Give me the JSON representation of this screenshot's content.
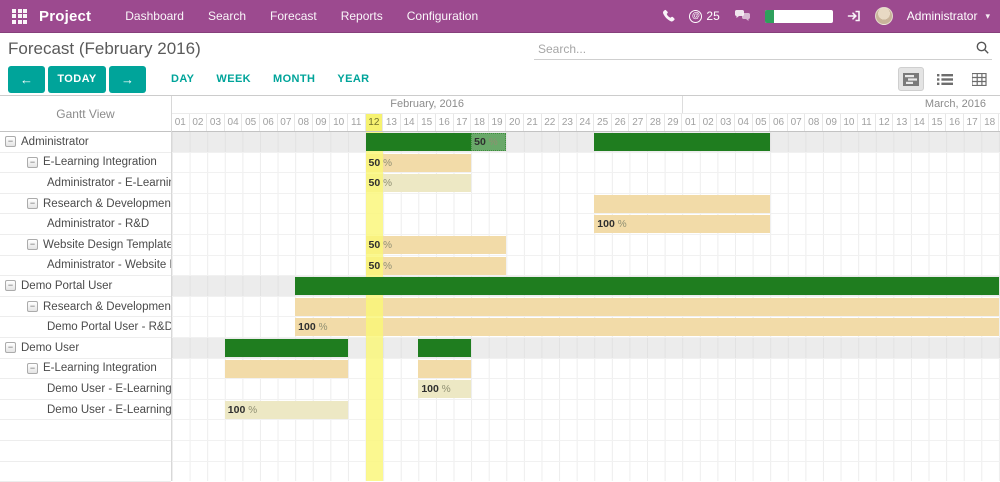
{
  "navbar": {
    "brand": "Project",
    "menus": [
      "Dashboard",
      "Search",
      "Forecast",
      "Reports",
      "Configuration"
    ],
    "message_count": "25",
    "user": "Administrator"
  },
  "header": {
    "title": "Forecast (February 2016)",
    "search_placeholder": "Search..."
  },
  "controls": {
    "today_label": "TODAY",
    "prev_label": "←",
    "next_label": "→",
    "ranges": [
      "DAY",
      "WEEK",
      "MONTH",
      "YEAR"
    ]
  },
  "colors": {
    "navbar": "#9c4a8f",
    "accent_teal": "#00a49a",
    "bar_green": "#1f7d1f",
    "bar_green_light": "#69a869",
    "bar_wheat": "#f2dba8",
    "bar_pale": "#ede8c4",
    "today_highlight": "#f6f270",
    "group_row": "#ececec"
  },
  "gantt": {
    "left_header": "Gantt View",
    "months": [
      {
        "label": "February, 2016",
        "days": 29
      },
      {
        "label": "March, 2016",
        "days": 31
      }
    ],
    "day_labels": [
      "01",
      "02",
      "03",
      "04",
      "05",
      "06",
      "07",
      "08",
      "09",
      "10",
      "11",
      "12",
      "13",
      "14",
      "15",
      "16",
      "17",
      "18",
      "19",
      "20",
      "21",
      "22",
      "23",
      "24",
      "25",
      "26",
      "27",
      "28",
      "29",
      "01",
      "02",
      "03",
      "04",
      "05",
      "06",
      "07",
      "08",
      "09",
      "10",
      "11",
      "12",
      "13",
      "14",
      "15",
      "16",
      "17",
      "18"
    ],
    "today_index": 11,
    "rows": [
      {
        "label": "Administrator",
        "level": 0,
        "group": true,
        "collapsible": true,
        "bars": [
          {
            "start": 11,
            "len": 6,
            "style": "green"
          },
          {
            "start": 17,
            "len": 2,
            "style": "green-light",
            "pct": "50",
            "unit": "%"
          },
          {
            "start": 24,
            "len": 10,
            "style": "green"
          }
        ]
      },
      {
        "label": "E-Learning Integration",
        "level": 1,
        "group": false,
        "collapsible": true,
        "bars": [
          {
            "start": 11,
            "len": 6,
            "style": "wheat",
            "pct": "50",
            "unit": "%"
          }
        ]
      },
      {
        "label": "Administrator - E-Learning",
        "level": 2,
        "group": false,
        "collapsible": false,
        "bars": [
          {
            "start": 11,
            "len": 6,
            "style": "pale",
            "pct": "50",
            "unit": "%"
          }
        ]
      },
      {
        "label": "Research & Development",
        "level": 1,
        "group": false,
        "collapsible": true,
        "bars": [
          {
            "start": 24,
            "len": 10,
            "style": "wheat"
          }
        ]
      },
      {
        "label": "Administrator - R&D",
        "level": 2,
        "group": false,
        "collapsible": false,
        "bars": [
          {
            "start": 24,
            "len": 10,
            "style": "wheat",
            "pct": "100",
            "unit": "%"
          }
        ]
      },
      {
        "label": "Website Design Templates",
        "level": 1,
        "group": false,
        "collapsible": true,
        "bars": [
          {
            "start": 11,
            "len": 8,
            "style": "wheat",
            "pct": "50",
            "unit": "%"
          }
        ]
      },
      {
        "label": "Administrator - Website Design",
        "level": 2,
        "group": false,
        "collapsible": false,
        "bars": [
          {
            "start": 11,
            "len": 8,
            "style": "wheat",
            "pct": "50",
            "unit": "%"
          }
        ]
      },
      {
        "label": "Demo Portal User",
        "level": 0,
        "group": true,
        "collapsible": true,
        "bars": [
          {
            "start": 7,
            "len": 40,
            "style": "green"
          }
        ]
      },
      {
        "label": "Research & Development",
        "level": 1,
        "group": false,
        "collapsible": true,
        "bars": [
          {
            "start": 7,
            "len": 40,
            "style": "wheat"
          }
        ]
      },
      {
        "label": "Demo Portal User - R&D",
        "level": 2,
        "group": false,
        "collapsible": false,
        "bars": [
          {
            "start": 7,
            "len": 40,
            "style": "wheat",
            "pct": "100",
            "unit": "%"
          }
        ]
      },
      {
        "label": "Demo User",
        "level": 0,
        "group": true,
        "collapsible": true,
        "bars": [
          {
            "start": 3,
            "len": 7,
            "style": "green"
          },
          {
            "start": 14,
            "len": 3,
            "style": "green"
          }
        ]
      },
      {
        "label": "E-Learning Integration",
        "level": 1,
        "group": false,
        "collapsible": true,
        "bars": [
          {
            "start": 3,
            "len": 7,
            "style": "wheat"
          },
          {
            "start": 14,
            "len": 3,
            "style": "wheat"
          }
        ]
      },
      {
        "label": "Demo User - E-Learning",
        "level": 2,
        "group": false,
        "collapsible": false,
        "bars": [
          {
            "start": 14,
            "len": 3,
            "style": "pale",
            "pct": "100",
            "unit": "%"
          }
        ]
      },
      {
        "label": "Demo User - E-Learning",
        "level": 2,
        "group": false,
        "collapsible": false,
        "bars": [
          {
            "start": 3,
            "len": 7,
            "style": "pale",
            "pct": "100",
            "unit": "%"
          }
        ]
      },
      {
        "label": "",
        "level": 0,
        "group": false,
        "collapsible": false,
        "bars": []
      },
      {
        "label": "",
        "level": 0,
        "group": false,
        "collapsible": false,
        "bars": []
      },
      {
        "label": "",
        "level": 0,
        "group": false,
        "collapsible": false,
        "bars": []
      }
    ]
  }
}
